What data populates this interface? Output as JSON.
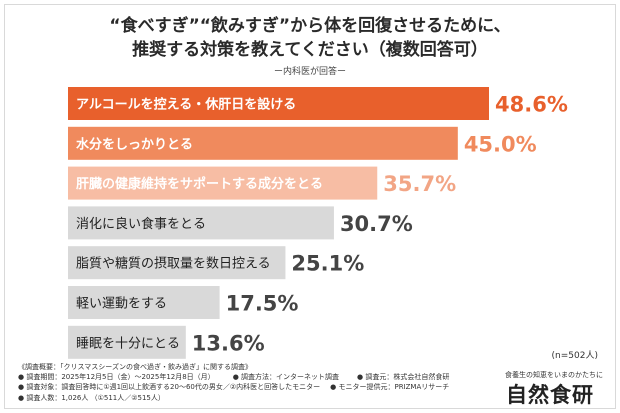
{
  "title_line1": "“食べすぎ”“飲みすぎ”から体を回復させるために、",
  "title_line2": "推奨する対策を教えてください（複数回答可）",
  "subtitle": "ー内科医が回答ー",
  "sample_note": "(n=502人)",
  "colors": {
    "bar_top": "#e8602c",
    "bar_second": "#f08a5d",
    "bar_third": "#f7bda4",
    "bar_rest": "#d9d9d9",
    "value_top": "#e8602c",
    "value_second": "#f08a5d",
    "value_third": "#f2a585",
    "value_rest": "#444444",
    "label_dark": "#222222",
    "label_light": "#ffffff"
  },
  "chart_data": {
    "type": "bar",
    "orientation": "horizontal",
    "categories": [
      "アルコールを控える・休肝日を設ける",
      "水分をしっかりとる",
      "肝臓の健康維持をサポートする成分をとる",
      "消化に良い食事をとる",
      "脂質や糖質の摂取量を数日控える",
      "軽い運動をする",
      "睡眠を十分にとる"
    ],
    "values": [
      48.6,
      45.0,
      35.7,
      30.7,
      25.1,
      17.5,
      13.6
    ],
    "value_labels": [
      "48.6%",
      "45.0%",
      "35.7%",
      "30.7%",
      "25.1%",
      "17.5%",
      "13.6%"
    ],
    "unit": "%",
    "xlim": [
      0,
      48.6
    ]
  },
  "footnotes": {
    "line1": "《調査概要：「クリスマスシーズンの食べ過ぎ・飲み過ぎ」に関する調査》",
    "line2a": "● 調査期間：2025年12月5日（金）〜2025年12月8日（月）",
    "line2b": "● 調査方法：インターネット調査",
    "line2c": "● 調査元：株式会社自然食研",
    "line3a": "● 調査対象：調査回答時に①週1回以上飲酒する20〜60代の男女／②内科医と回答したモニター",
    "line3b": "● モニター提供元：PRIZMAリサーチ",
    "line4": "● 調査人数：1,026人 （①511人／②515人）"
  },
  "logo": {
    "tagline": "食養生の知恵をいまのかたちに",
    "name": "自然食研"
  }
}
